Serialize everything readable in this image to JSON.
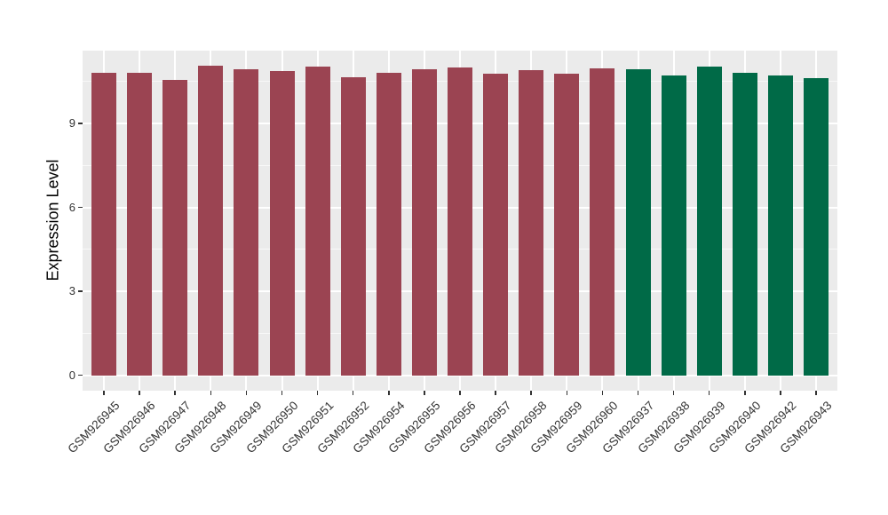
{
  "figure": {
    "background": "#FFFFFF",
    "panel_background": "#EBEBEB",
    "gridline_major_color": "#FFFFFF",
    "gridline_minor_color": "rgba(255,255,255,0.65)",
    "axis_text_color": "#333333",
    "axis_title_color": "#000000",
    "tick_mark_color": "#333333"
  },
  "chart_data": {
    "type": "bar",
    "title": "",
    "xlabel": "",
    "ylabel": "Expression Level",
    "ylim": [
      -0.55,
      11.6
    ],
    "yticks": [
      0,
      3,
      6,
      9
    ],
    "minor_yticks": [
      1.5,
      4.5,
      7.5,
      10.5
    ],
    "grid": true,
    "legend_position": "none",
    "categories": [
      "GSM926945",
      "GSM926946",
      "GSM926947",
      "GSM926948",
      "GSM926949",
      "GSM926950",
      "GSM926951",
      "GSM926952",
      "GSM926954",
      "GSM926955",
      "GSM926956",
      "GSM926957",
      "GSM926958",
      "GSM926959",
      "GSM926960",
      "GSM926937",
      "GSM926938",
      "GSM926939",
      "GSM926940",
      "GSM926942",
      "GSM926943"
    ],
    "values": [
      10.8,
      10.8,
      10.55,
      11.05,
      10.92,
      10.86,
      11.02,
      10.65,
      10.81,
      10.93,
      11.0,
      10.78,
      10.89,
      10.78,
      10.97,
      10.92,
      10.72,
      11.02,
      10.8,
      10.71,
      10.63
    ],
    "groups": [
      "group1",
      "group1",
      "group1",
      "group1",
      "group1",
      "group1",
      "group1",
      "group1",
      "group1",
      "group1",
      "group1",
      "group1",
      "group1",
      "group1",
      "group1",
      "group2",
      "group2",
      "group2",
      "group2",
      "group2",
      "group2"
    ],
    "palette": {
      "group1": "#9B4452",
      "group2": "#006A47"
    }
  }
}
